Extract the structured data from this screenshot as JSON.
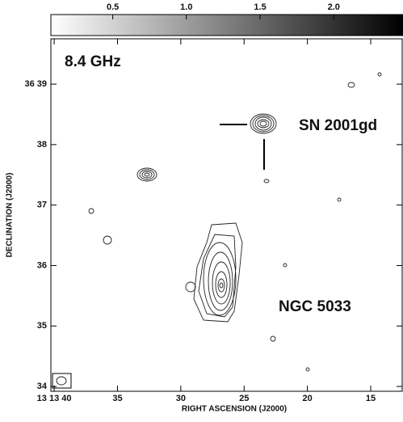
{
  "chart_data": {
    "type": "contour",
    "title": "8.4 GHz",
    "x_label": "RIGHT ASCENSION (J2000)",
    "y_label": "DECLINATION (J2000)",
    "annotations": [
      "SN 2001gd",
      "NGC 5033"
    ],
    "xlim": [
      40.26,
      12.45
    ],
    "xticks": [
      {
        "value": 40,
        "label": "13 13 40"
      },
      35,
      30,
      25,
      20,
      15
    ],
    "ylim": [
      33.92,
      39.75
    ],
    "yticks": [
      {
        "value": 39,
        "label": "36 39"
      },
      38,
      37,
      36,
      35,
      34
    ],
    "colorbar": {
      "lim": [
        0.08,
        2.47
      ],
      "ticks": [
        0.5,
        1.0,
        1.5,
        2.0
      ]
    }
  }
}
